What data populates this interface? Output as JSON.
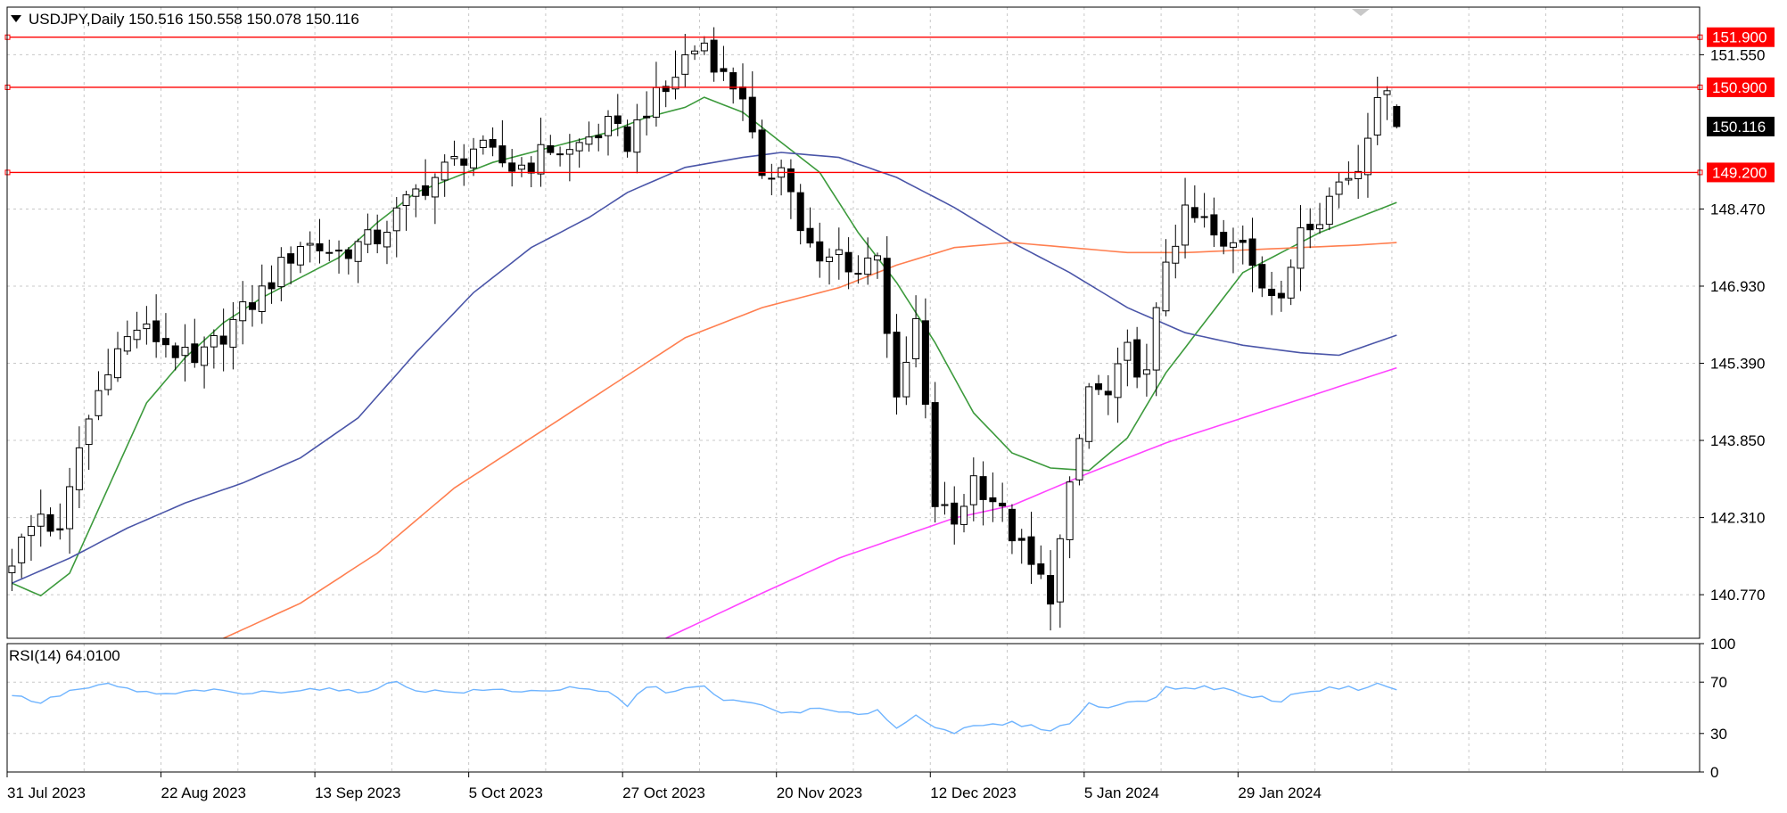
{
  "header": {
    "symbol_line": "USDJPY,Daily  150.516 150.558 150.078 150.116",
    "rsi_line": "RSI(14) 64.0100"
  },
  "colors": {
    "background": "#ffffff",
    "grid": "#c8c8c8",
    "frame": "#000000",
    "candle_bull": "#ffffff",
    "candle_bear": "#000000",
    "level": "#ff0000",
    "ma_green": "#3c9a3c",
    "ma_blue": "#4a55a8",
    "ma_orange": "#ff7f50",
    "ma_magenta": "#ff44ff",
    "rsi": "#6fb4ff",
    "price_tag_bg": "#000000"
  },
  "chart_data": {
    "type": "candlestick",
    "symbol": "USDJPY",
    "timeframe": "Daily",
    "ohlc_last": {
      "open": 150.516,
      "high": 150.558,
      "low": 150.078,
      "close": 150.116
    },
    "ylim": [
      139.9,
      152.5
    ],
    "y_ticks": [
      151.55,
      148.47,
      146.93,
      145.39,
      143.85,
      142.31,
      140.77
    ],
    "y_tick_labels": [
      "151.550",
      "148.470",
      "146.930",
      "145.390",
      "143.850",
      "142.310",
      "140.770"
    ],
    "x_ticks": [
      "31 Jul 2023",
      "22 Aug 2023",
      "13 Sep 2023",
      "5 Oct 2023",
      "27 Oct 2023",
      "20 Nov 2023",
      "12 Dec 2023",
      "5 Jan 2024",
      "29 Jan 2024"
    ],
    "x_tick_bar_index": [
      0,
      16,
      32,
      48,
      64,
      80,
      96,
      112,
      128
    ],
    "total_slots": 176,
    "levels": [
      {
        "value": 151.9,
        "label": "151.900"
      },
      {
        "value": 150.9,
        "label": "150.900"
      },
      {
        "value": 149.2,
        "label": "149.200"
      }
    ],
    "current_price": {
      "value": 150.116,
      "label": "150.116"
    },
    "close_anchors": [
      [
        0,
        141.5
      ],
      [
        3,
        142.4
      ],
      [
        5,
        141.9
      ],
      [
        7,
        143.7
      ],
      [
        10,
        145.4
      ],
      [
        13,
        146.1
      ],
      [
        16,
        145.8
      ],
      [
        19,
        145.3
      ],
      [
        22,
        146.0
      ],
      [
        26,
        146.8
      ],
      [
        30,
        147.8
      ],
      [
        34,
        147.6
      ],
      [
        38,
        147.9
      ],
      [
        42,
        148.8
      ],
      [
        46,
        149.4
      ],
      [
        48,
        149.7
      ],
      [
        52,
        149.3
      ],
      [
        54,
        149.4
      ],
      [
        56,
        149.7
      ],
      [
        58,
        149.6
      ],
      [
        60,
        149.9
      ],
      [
        62,
        150.1
      ],
      [
        64,
        149.8
      ],
      [
        66,
        150.5
      ],
      [
        68,
        150.8
      ],
      [
        70,
        151.5
      ],
      [
        72,
        151.8
      ],
      [
        74,
        151.1
      ],
      [
        76,
        150.8
      ],
      [
        78,
        148.9
      ],
      [
        80,
        149.5
      ],
      [
        82,
        148.1
      ],
      [
        84,
        147.3
      ],
      [
        86,
        147.6
      ],
      [
        88,
        147.2
      ],
      [
        90,
        147.7
      ],
      [
        92,
        144.5
      ],
      [
        94,
        146.2
      ],
      [
        96,
        142.6
      ],
      [
        98,
        142.2
      ],
      [
        100,
        143.1
      ],
      [
        102,
        142.7
      ],
      [
        104,
        142.0
      ],
      [
        106,
        141.3
      ],
      [
        108,
        140.8
      ],
      [
        110,
        142.8
      ],
      [
        112,
        144.9
      ],
      [
        114,
        144.7
      ],
      [
        116,
        145.6
      ],
      [
        118,
        145.1
      ],
      [
        120,
        147.5
      ],
      [
        122,
        148.3
      ],
      [
        124,
        148.2
      ],
      [
        126,
        147.6
      ],
      [
        128,
        147.9
      ],
      [
        130,
        147.1
      ],
      [
        132,
        146.5
      ],
      [
        134,
        148.2
      ],
      [
        136,
        148.4
      ],
      [
        138,
        149.0
      ],
      [
        140,
        149.3
      ],
      [
        142,
        150.9
      ],
      [
        143,
        150.6
      ],
      [
        144,
        150.116
      ]
    ],
    "ma_series": [
      {
        "color": "#3c9a3c",
        "points": [
          [
            0,
            141.0
          ],
          [
            3,
            140.75
          ],
          [
            6,
            141.2
          ],
          [
            10,
            142.9
          ],
          [
            14,
            144.6
          ],
          [
            18,
            145.5
          ],
          [
            22,
            146.2
          ],
          [
            26,
            146.7
          ],
          [
            30,
            147.1
          ],
          [
            34,
            147.5
          ],
          [
            38,
            148.2
          ],
          [
            42,
            148.8
          ],
          [
            46,
            149.1
          ],
          [
            50,
            149.4
          ],
          [
            54,
            149.6
          ],
          [
            58,
            149.8
          ],
          [
            62,
            150.0
          ],
          [
            66,
            150.3
          ],
          [
            70,
            150.5
          ],
          [
            72,
            150.7
          ],
          [
            76,
            150.4
          ],
          [
            80,
            149.8
          ],
          [
            84,
            149.2
          ],
          [
            88,
            148.0
          ],
          [
            92,
            147.0
          ],
          [
            96,
            145.8
          ],
          [
            100,
            144.4
          ],
          [
            104,
            143.6
          ],
          [
            108,
            143.3
          ],
          [
            112,
            143.25
          ],
          [
            116,
            143.9
          ],
          [
            120,
            145.2
          ],
          [
            124,
            146.2
          ],
          [
            128,
            147.2
          ],
          [
            132,
            147.6
          ],
          [
            136,
            148.0
          ],
          [
            140,
            148.3
          ],
          [
            144,
            148.6
          ]
        ]
      },
      {
        "color": "#4a55a8",
        "points": [
          [
            0,
            141.0
          ],
          [
            6,
            141.5
          ],
          [
            12,
            142.1
          ],
          [
            18,
            142.6
          ],
          [
            24,
            143.0
          ],
          [
            30,
            143.5
          ],
          [
            36,
            144.3
          ],
          [
            42,
            145.6
          ],
          [
            48,
            146.8
          ],
          [
            54,
            147.7
          ],
          [
            60,
            148.3
          ],
          [
            64,
            148.8
          ],
          [
            70,
            149.3
          ],
          [
            76,
            149.5
          ],
          [
            80,
            149.6
          ],
          [
            86,
            149.5
          ],
          [
            92,
            149.1
          ],
          [
            98,
            148.5
          ],
          [
            104,
            147.8
          ],
          [
            110,
            147.2
          ],
          [
            116,
            146.5
          ],
          [
            122,
            146.0
          ],
          [
            128,
            145.75
          ],
          [
            134,
            145.6
          ],
          [
            138,
            145.55
          ],
          [
            144,
            145.95
          ]
        ]
      },
      {
        "color": "#ff7f50",
        "points": [
          [
            22,
            139.9
          ],
          [
            30,
            140.6
          ],
          [
            38,
            141.6
          ],
          [
            46,
            142.9
          ],
          [
            54,
            143.9
          ],
          [
            62,
            144.9
          ],
          [
            70,
            145.9
          ],
          [
            78,
            146.5
          ],
          [
            86,
            146.9
          ],
          [
            92,
            147.35
          ],
          [
            98,
            147.7
          ],
          [
            104,
            147.8
          ],
          [
            110,
            147.7
          ],
          [
            116,
            147.6
          ],
          [
            122,
            147.6
          ],
          [
            128,
            147.65
          ],
          [
            134,
            147.7
          ],
          [
            140,
            147.75
          ],
          [
            144,
            147.8
          ]
        ]
      },
      {
        "color": "#ff44ff",
        "points": [
          [
            68,
            139.9
          ],
          [
            78,
            140.8
          ],
          [
            86,
            141.5
          ],
          [
            92,
            141.9
          ],
          [
            98,
            142.3
          ],
          [
            104,
            142.55
          ],
          [
            112,
            143.2
          ],
          [
            120,
            143.8
          ],
          [
            128,
            144.3
          ],
          [
            136,
            144.8
          ],
          [
            144,
            145.3
          ]
        ]
      }
    ],
    "rsi": {
      "label": "RSI(14)",
      "value": 64.01,
      "ylim": [
        0,
        100
      ],
      "ticks": [
        100,
        70,
        30,
        0
      ],
      "levels": [
        70,
        30
      ],
      "anchors": [
        [
          0,
          60
        ],
        [
          3,
          54
        ],
        [
          6,
          63
        ],
        [
          10,
          68
        ],
        [
          13,
          63
        ],
        [
          16,
          60
        ],
        [
          20,
          64
        ],
        [
          24,
          61
        ],
        [
          28,
          63
        ],
        [
          32,
          65
        ],
        [
          36,
          62
        ],
        [
          40,
          70
        ],
        [
          42,
          64
        ],
        [
          46,
          62
        ],
        [
          50,
          64
        ],
        [
          54,
          63
        ],
        [
          58,
          65
        ],
        [
          62,
          62
        ],
        [
          64,
          52
        ],
        [
          66,
          67
        ],
        [
          68,
          63
        ],
        [
          70,
          65
        ],
        [
          72,
          66
        ],
        [
          74,
          55
        ],
        [
          76,
          56
        ],
        [
          80,
          46
        ],
        [
          84,
          49
        ],
        [
          88,
          44
        ],
        [
          90,
          49
        ],
        [
          92,
          34
        ],
        [
          94,
          44
        ],
        [
          96,
          36
        ],
        [
          98,
          31
        ],
        [
          100,
          35
        ],
        [
          104,
          38
        ],
        [
          108,
          33
        ],
        [
          110,
          38
        ],
        [
          112,
          53
        ],
        [
          114,
          50
        ],
        [
          116,
          56
        ],
        [
          118,
          54
        ],
        [
          120,
          65
        ],
        [
          124,
          66
        ],
        [
          126,
          65
        ],
        [
          128,
          60
        ],
        [
          130,
          58
        ],
        [
          132,
          55
        ],
        [
          134,
          63
        ],
        [
          136,
          64
        ],
        [
          138,
          66
        ],
        [
          140,
          65
        ],
        [
          142,
          69
        ],
        [
          144,
          64
        ]
      ]
    }
  }
}
